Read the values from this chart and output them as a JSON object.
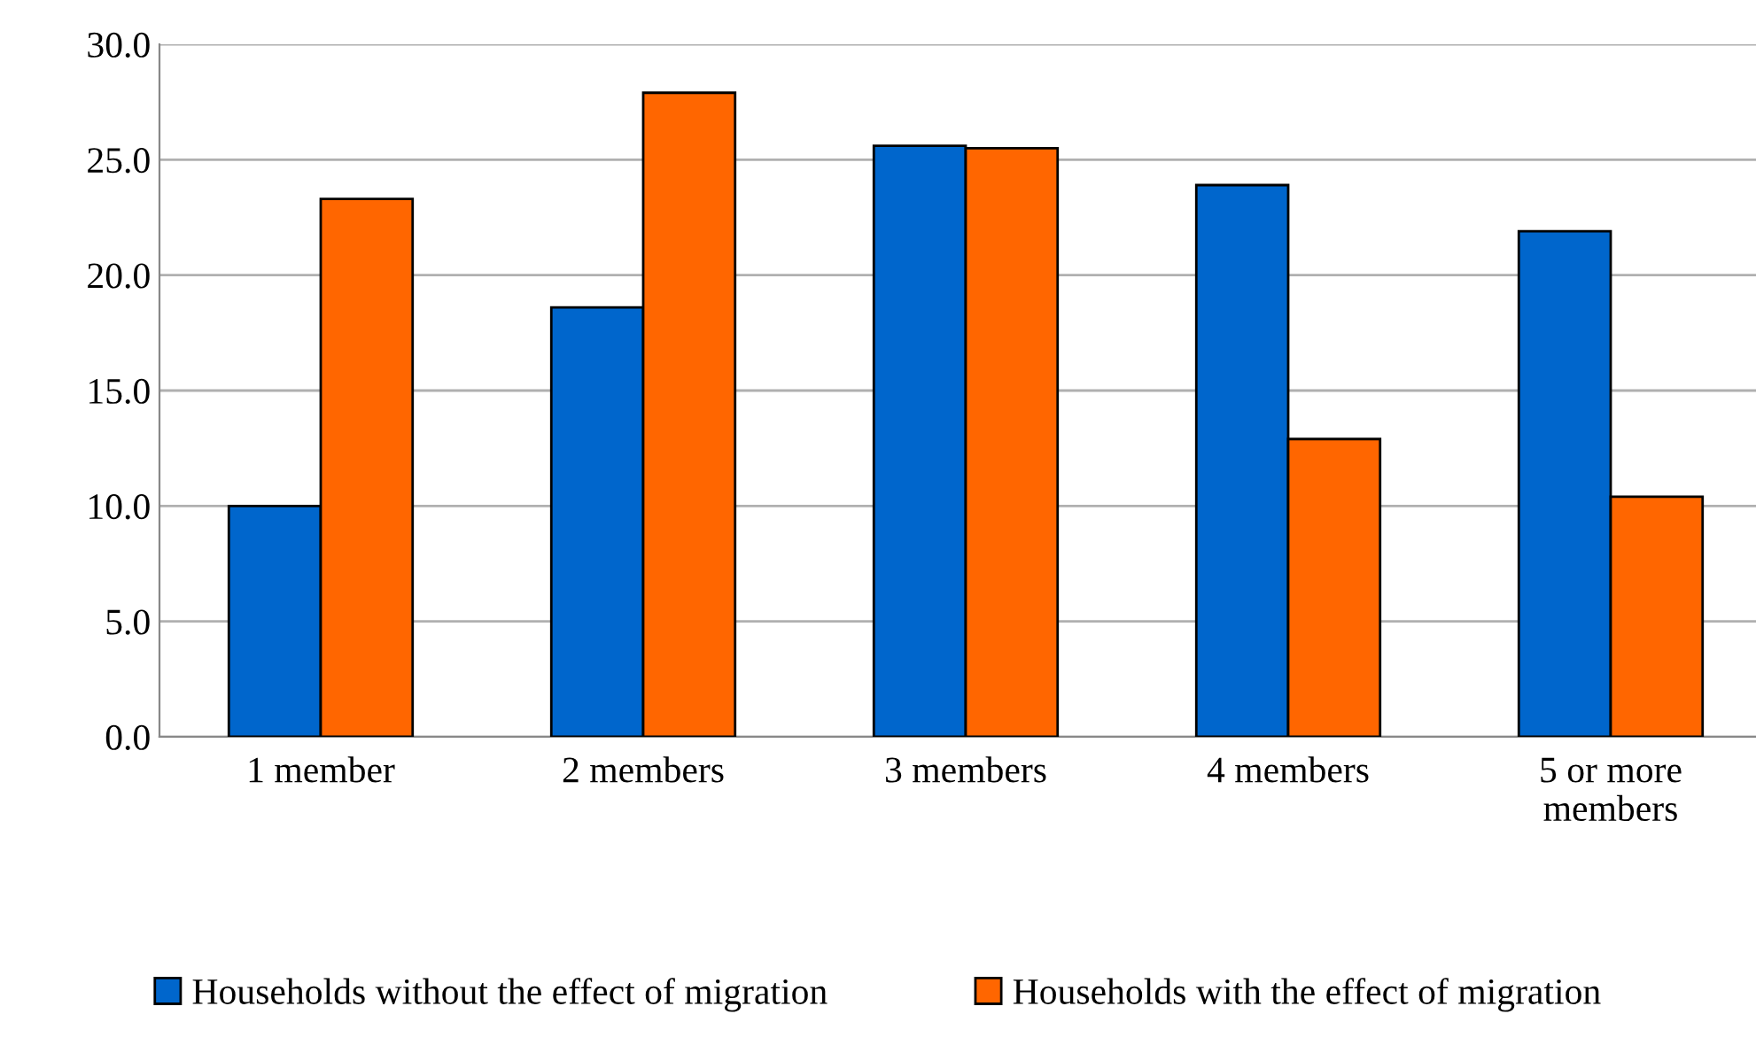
{
  "chart_data": {
    "type": "bar",
    "categories": [
      "1 member",
      "2 members",
      "3 members",
      "4 members",
      "5 or more\nmembers"
    ],
    "series": [
      {
        "name": "Households without the effect of migration",
        "color": "#0066cc",
        "values": [
          10.0,
          18.6,
          25.6,
          23.9,
          21.9
        ]
      },
      {
        "name": "Households with the effect of migration",
        "color": "#ff6600",
        "values": [
          23.3,
          27.9,
          25.5,
          12.9,
          10.4
        ]
      }
    ],
    "ylim": [
      0,
      30
    ],
    "yticks": [
      {
        "value": 0,
        "label": "0.0"
      },
      {
        "value": 5,
        "label": "5.0"
      },
      {
        "value": 10,
        "label": "10.0"
      },
      {
        "value": 15,
        "label": "15.0"
      },
      {
        "value": 20,
        "label": "20.0"
      },
      {
        "value": 25,
        "label": "25.0"
      },
      {
        "value": 30,
        "label": "30.0"
      }
    ],
    "grid": "y",
    "legend": "bottom"
  }
}
